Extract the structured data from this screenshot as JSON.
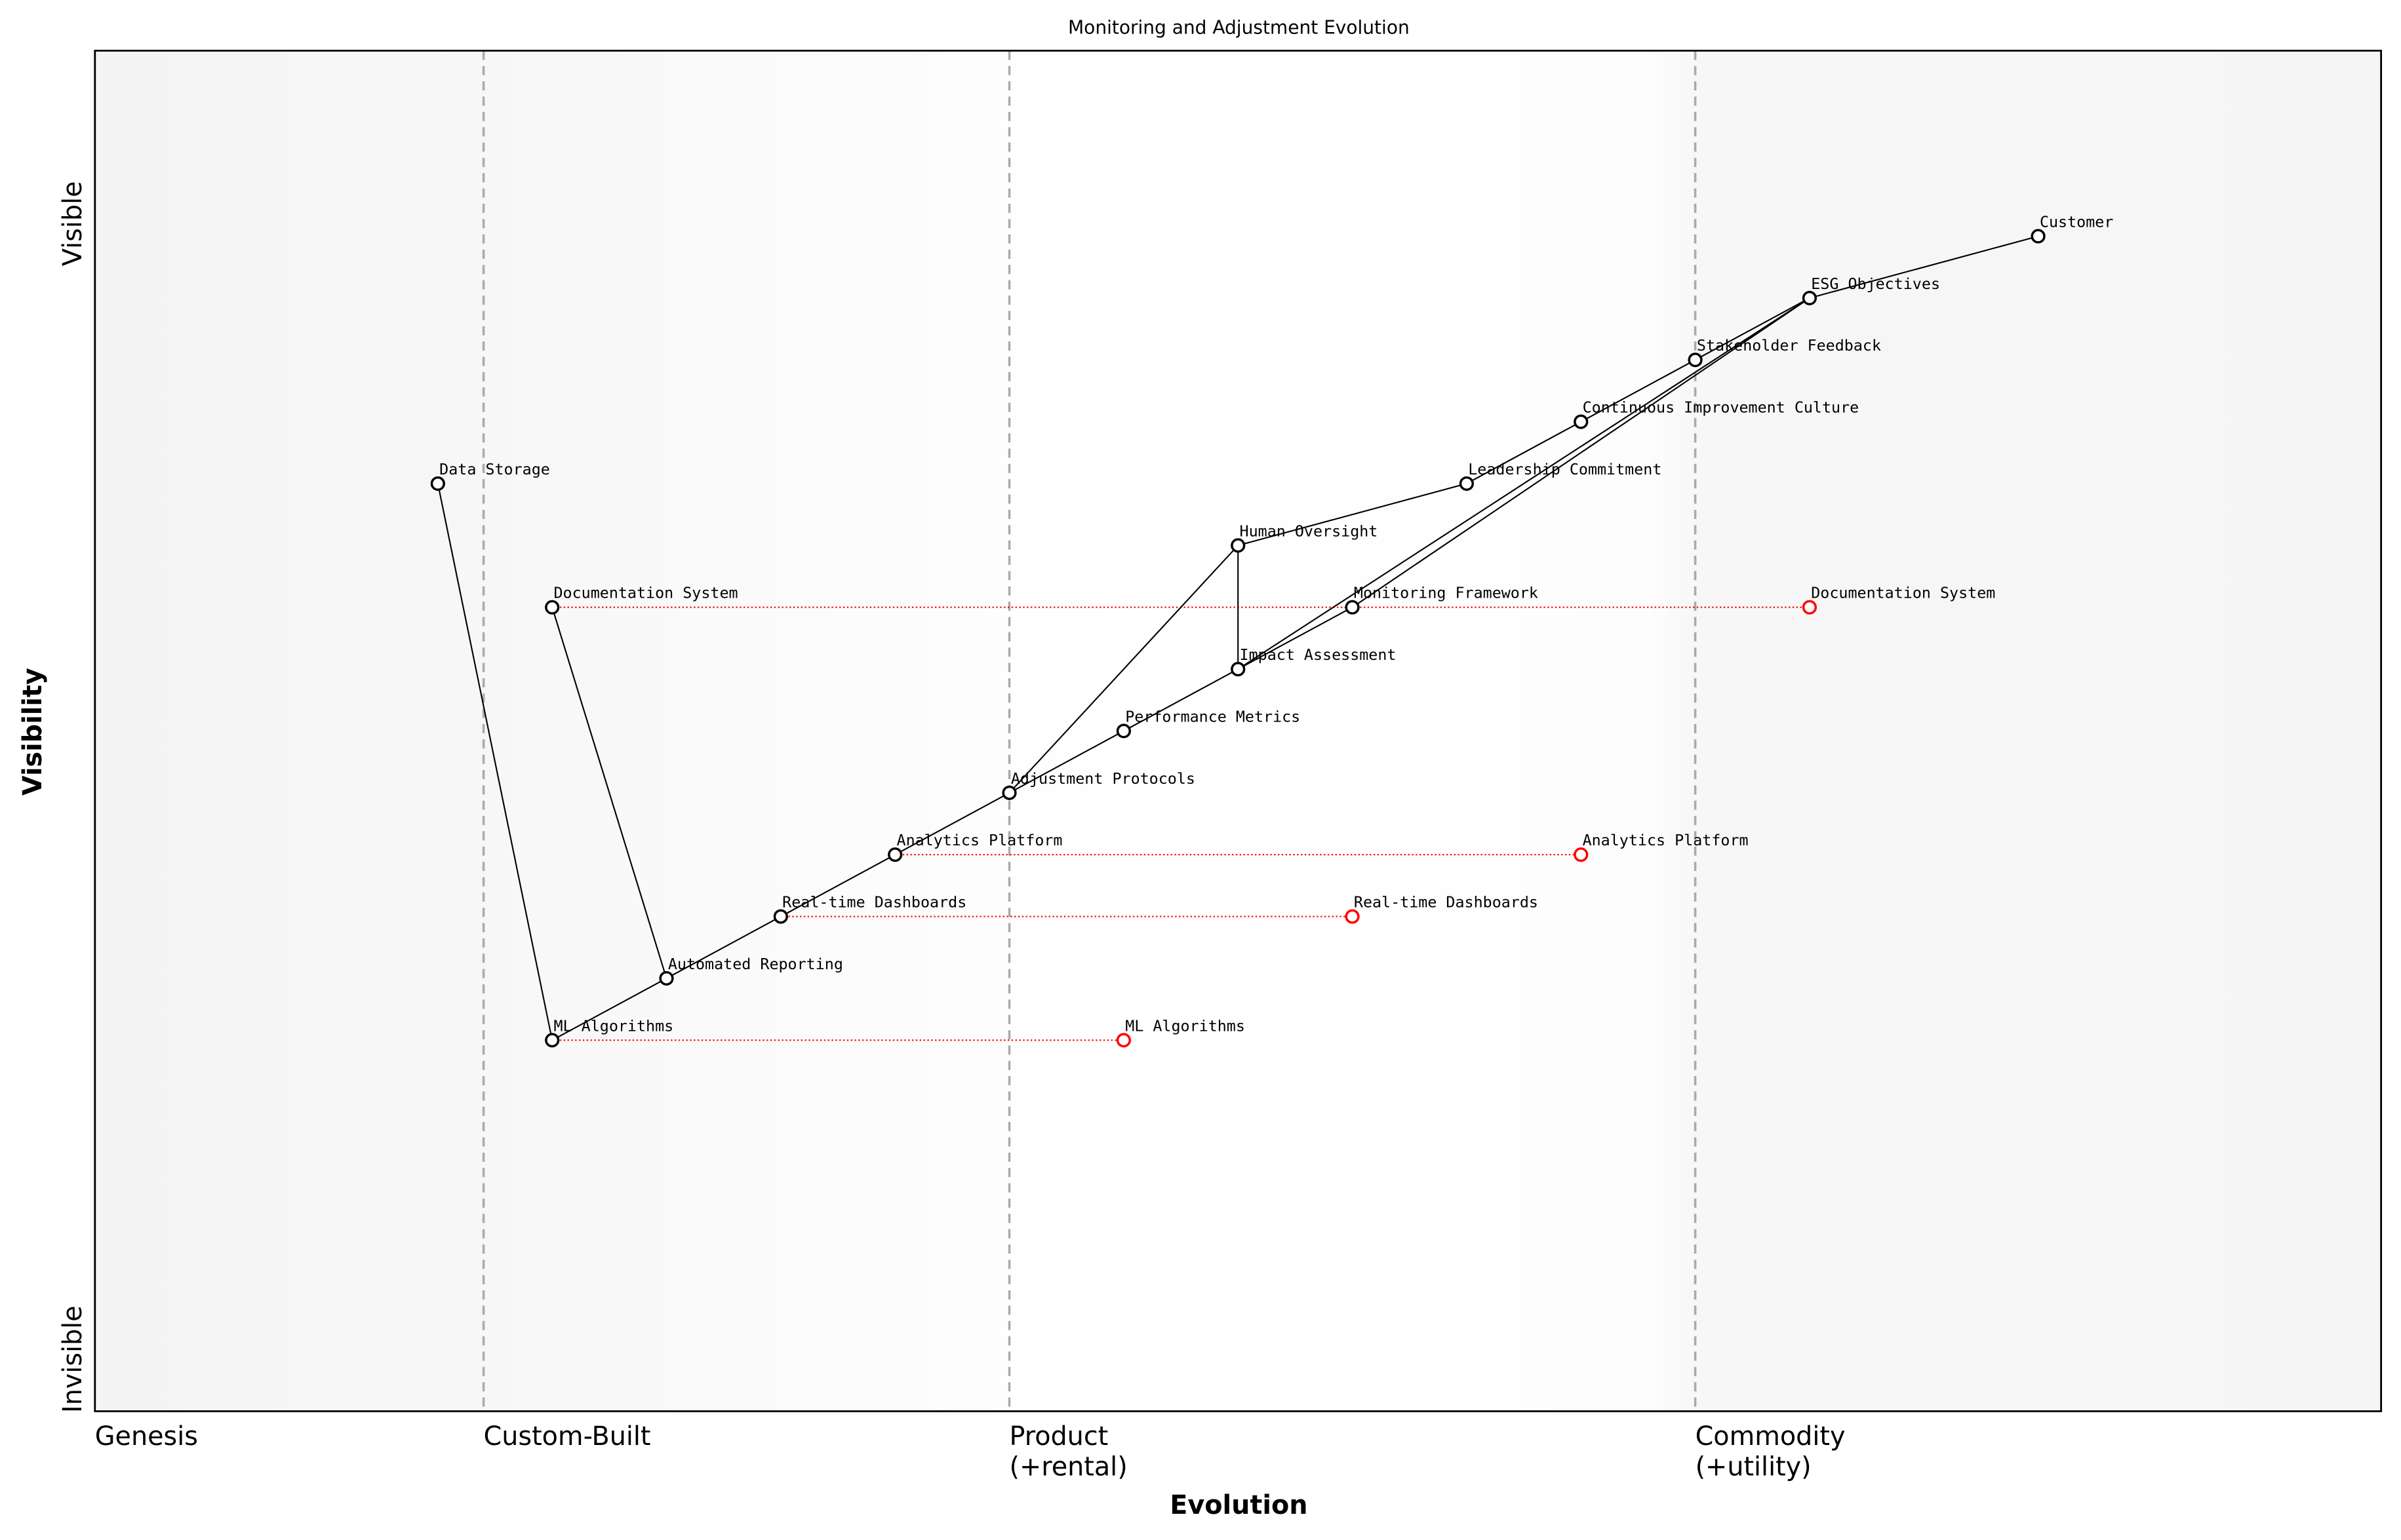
{
  "chart_data": {
    "type": "scatter",
    "title": "Monitoring and Adjustment Evolution",
    "xlabel": "Evolution",
    "ylabel": "Visibility",
    "xlim": [
      0,
      1
    ],
    "ylim": [
      0,
      1.1
    ],
    "grid": false,
    "y_tick_labels": {
      "top": "Visible",
      "bottom": "Invisible"
    },
    "stages": [
      {
        "label": "Genesis",
        "x": 0
      },
      {
        "label": "Custom-Built",
        "x": 0.17
      },
      {
        "label": "Product\n(+rental)",
        "x": 0.4
      },
      {
        "label": "Commodity\n(+utility)",
        "x": 0.7
      }
    ],
    "components": [
      {
        "name": "Customer",
        "x": 0.85,
        "y": 0.95
      },
      {
        "name": "ESG Objectives",
        "x": 0.75,
        "y": 0.9
      },
      {
        "name": "Stakeholder Feedback",
        "x": 0.7,
        "y": 0.85
      },
      {
        "name": "Continuous Improvement Culture",
        "x": 0.65,
        "y": 0.8
      },
      {
        "name": "Leadership Commitment",
        "x": 0.6,
        "y": 0.75
      },
      {
        "name": "Data Storage",
        "x": 0.15,
        "y": 0.75
      },
      {
        "name": "Human Oversight",
        "x": 0.5,
        "y": 0.7
      },
      {
        "name": "Documentation System",
        "x": 0.2,
        "y": 0.65
      },
      {
        "name": "Monitoring Framework",
        "x": 0.55,
        "y": 0.65
      },
      {
        "name": "Impact Assessment",
        "x": 0.5,
        "y": 0.6
      },
      {
        "name": "Performance Metrics",
        "x": 0.45,
        "y": 0.55
      },
      {
        "name": "Adjustment Protocols",
        "x": 0.4,
        "y": 0.5
      },
      {
        "name": "Analytics Platform",
        "x": 0.35,
        "y": 0.45
      },
      {
        "name": "Real-time Dashboards",
        "x": 0.3,
        "y": 0.4
      },
      {
        "name": "Automated Reporting",
        "x": 0.25,
        "y": 0.35
      },
      {
        "name": "ML Algorithms",
        "x": 0.2,
        "y": 0.3
      }
    ],
    "links": [
      [
        "Customer",
        "ESG Objectives"
      ],
      [
        "ESG Objectives",
        "Stakeholder Feedback"
      ],
      [
        "ESG Objectives",
        "Monitoring Framework"
      ],
      [
        "ESG Objectives",
        "Impact Assessment"
      ],
      [
        "Stakeholder Feedback",
        "Continuous Improvement Culture"
      ],
      [
        "Continuous Improvement Culture",
        "Leadership Commitment"
      ],
      [
        "Leadership Commitment",
        "Human Oversight"
      ],
      [
        "Human Oversight",
        "Impact Assessment"
      ],
      [
        "Human Oversight",
        "Adjustment Protocols"
      ],
      [
        "Monitoring Framework",
        "Impact Assessment"
      ],
      [
        "Impact Assessment",
        "Performance Metrics"
      ],
      [
        "Performance Metrics",
        "Adjustment Protocols"
      ],
      [
        "Adjustment Protocols",
        "Analytics Platform"
      ],
      [
        "Analytics Platform",
        "Real-time Dashboards"
      ],
      [
        "Real-time Dashboards",
        "Automated Reporting"
      ],
      [
        "Automated Reporting",
        "ML Algorithms"
      ],
      [
        "Automated Reporting",
        "Documentation System"
      ],
      [
        "ML Algorithms",
        "Data Storage"
      ]
    ],
    "evolutions": [
      {
        "name": "Documentation System",
        "from_x": 0.2,
        "to_x": 0.75,
        "y": 0.65
      },
      {
        "name": "Analytics Platform",
        "from_x": 0.35,
        "to_x": 0.65,
        "y": 0.45
      },
      {
        "name": "Real-time Dashboards",
        "from_x": 0.3,
        "to_x": 0.55,
        "y": 0.4
      },
      {
        "name": "ML Algorithms",
        "from_x": 0.2,
        "to_x": 0.45,
        "y": 0.3
      }
    ],
    "colors": {
      "component": "#000000",
      "evolved": "#ff0000",
      "stage_divider": "#aaaaaa",
      "edge_region": "#f5f5f5"
    }
  }
}
